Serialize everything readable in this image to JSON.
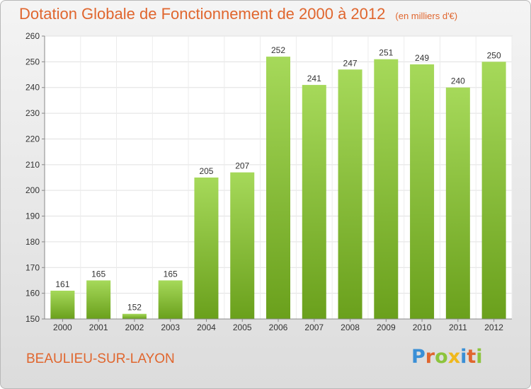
{
  "title": "Dotation Globale de Fonctionnement de 2000 à 2012",
  "title_unit": "(en milliers d'€)",
  "commune": "BEAULIEU-SUR-LAYON",
  "logo": [
    "P",
    "r",
    "o",
    "x",
    "i",
    "t",
    "i"
  ],
  "logo_colors": [
    "#3a8fd6",
    "#e0662e",
    "#8cc43c",
    "#f0b81c",
    "#3a8fd6",
    "#e0662e",
    "#8cc43c"
  ],
  "colors": {
    "bar_light": "#a6d95a",
    "bar_dark": "#6aa01c",
    "title": "#e0662e"
  },
  "chart_data": {
    "type": "bar",
    "categories": [
      "2000",
      "2001",
      "2002",
      "2003",
      "2004",
      "2005",
      "2006",
      "2007",
      "2008",
      "2009",
      "2010",
      "2011",
      "2012"
    ],
    "values": [
      161,
      165,
      152,
      165,
      205,
      207,
      252,
      241,
      247,
      251,
      249,
      240,
      250
    ],
    "ylim": [
      150,
      260
    ],
    "yticks": [
      150,
      160,
      170,
      180,
      190,
      200,
      210,
      220,
      230,
      240,
      250,
      260
    ],
    "grid": true
  }
}
